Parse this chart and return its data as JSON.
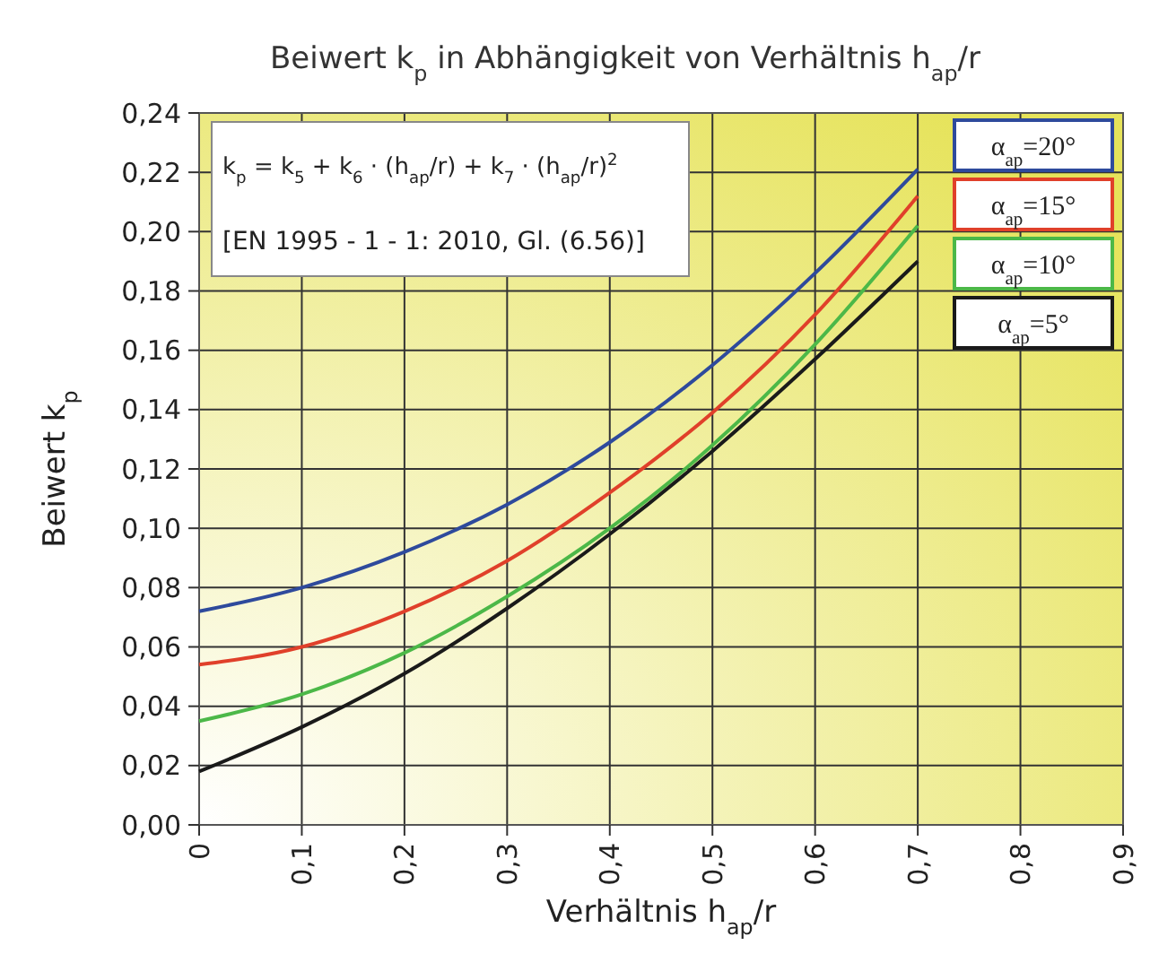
{
  "chart_data": {
    "type": "line",
    "title": "Beiwert k$_{p}$ in Abhängigkeit von Verhältnis h$_{ap}$/r",
    "xlabel": "Verhältnis h$_{ap}$/r",
    "ylabel": "Beiwert k$_{p}$",
    "x": [
      0,
      0.1,
      0.2,
      0.3,
      0.4,
      0.5,
      0.6,
      0.7
    ],
    "series": [
      {
        "name": "α$_{ap}$=20°",
        "color": "#2e4a9c",
        "values": [
          0.072,
          0.08,
          0.092,
          0.108,
          0.129,
          0.155,
          0.186,
          0.221
        ]
      },
      {
        "name": "α$_{ap}$=15°",
        "color": "#e0402a",
        "values": [
          0.054,
          0.06,
          0.072,
          0.089,
          0.112,
          0.139,
          0.172,
          0.212
        ]
      },
      {
        "name": "α$_{ap}$=10°",
        "color": "#4cb848",
        "values": [
          0.035,
          0.044,
          0.058,
          0.077,
          0.1,
          0.128,
          0.162,
          0.202
        ]
      },
      {
        "name": "α$_{ap}$=5°",
        "color": "#1a1a1a",
        "values": [
          0.018,
          0.033,
          0.051,
          0.073,
          0.098,
          0.126,
          0.157,
          0.19
        ]
      }
    ],
    "xlim": [
      0,
      0.9
    ],
    "xticks": [
      0,
      {
        "value": 0.1,
        "label": "0,1"
      },
      {
        "value": 0.2,
        "label": "0,2"
      },
      {
        "value": 0.3,
        "label": "0,3"
      },
      {
        "value": 0.4,
        "label": "0,4"
      },
      {
        "value": 0.5,
        "label": "0,5"
      },
      {
        "value": 0.6,
        "label": "0,6"
      },
      {
        "value": 0.7,
        "label": "0,7"
      },
      {
        "value": 0.8,
        "label": "0,8"
      },
      {
        "value": 0.9,
        "label": "0,9"
      }
    ],
    "ylim": [
      0,
      0.24
    ],
    "yticks": [
      {
        "value": 0,
        "label": "0,00"
      },
      {
        "value": 0.02,
        "label": "0,02"
      },
      {
        "value": 0.04,
        "label": "0,04"
      },
      {
        "value": 0.06,
        "label": "0,06"
      },
      {
        "value": 0.08,
        "label": "0,08"
      },
      {
        "value": 0.1,
        "label": "0,10"
      },
      {
        "value": 0.12,
        "label": "0,12"
      },
      {
        "value": 0.14,
        "label": "0,14"
      },
      {
        "value": 0.16,
        "label": "0,16"
      },
      {
        "value": 0.18,
        "label": "0,18"
      },
      {
        "value": 0.2,
        "label": "0,20"
      },
      {
        "value": 0.22,
        "label": "0,22"
      },
      {
        "value": 0.24,
        "label": "0,24"
      }
    ],
    "grid": true,
    "legend": "top right",
    "marker": "none",
    "line_style": "solid",
    "annotations": [
      "k$_{p}$ = k$_{5}$ + k$_{6}$ · (h$_{ap}$/r) + k$_{7}$ · (h$_{ap}$/r)$^{2}$",
      "[EN 1995 - 1 - 1: 2010, Gl. (6.56)]"
    ]
  }
}
